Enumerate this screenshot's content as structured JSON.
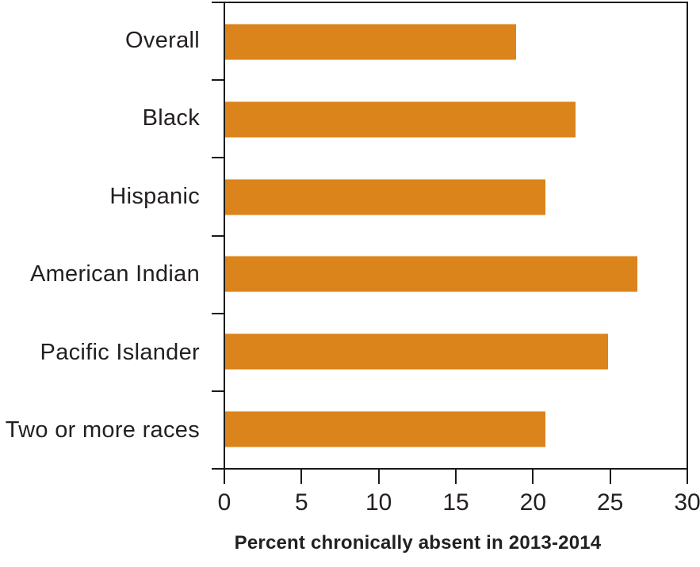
{
  "chart_data": {
    "type": "bar",
    "orientation": "horizontal",
    "title": "",
    "xlabel": "Percent chronically absent in 2013-2014",
    "ylabel": "",
    "categories": [
      "Overall",
      "Black",
      "Hispanic",
      "American Indian",
      "Pacific Islander",
      "Two or more races"
    ],
    "values": [
      18.9,
      22.8,
      20.8,
      26.8,
      24.9,
      20.8
    ],
    "unit": "percent",
    "xlim": [
      0,
      30
    ],
    "xticks": [
      0,
      5,
      10,
      15,
      20,
      25,
      30
    ],
    "grid": false,
    "legend": "none",
    "bar_color": "#DB841C",
    "axis_color": "#1A1A1A",
    "text_color": "#231F20",
    "background_color": "#FFFFFF"
  }
}
